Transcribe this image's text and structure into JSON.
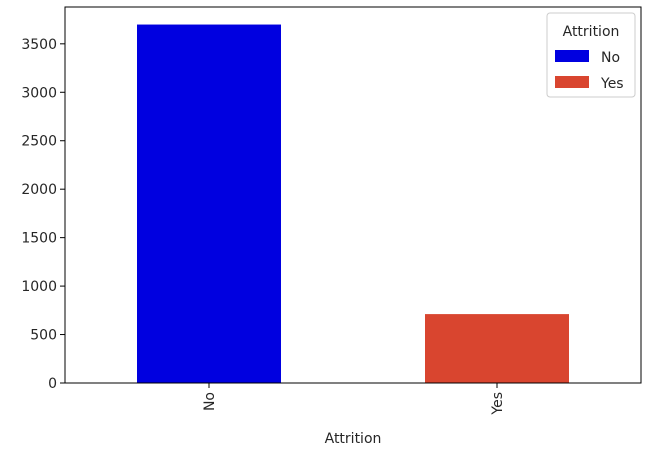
{
  "chart_data": {
    "type": "bar",
    "categories": [
      "No",
      "Yes"
    ],
    "values": [
      3699,
      711
    ],
    "colors": [
      "#0000e0",
      "#d9452f"
    ],
    "title": "",
    "xlabel": "Attrition",
    "ylabel": "",
    "ylim": [
      0,
      3880
    ],
    "yticks": [
      0,
      500,
      1000,
      1500,
      2000,
      2500,
      3000,
      3500
    ],
    "x_tick_rotation": "vertical",
    "grid": false,
    "legend": {
      "title": "Attrition",
      "entries": [
        "No",
        "Yes"
      ],
      "placement": "top-right"
    }
  }
}
